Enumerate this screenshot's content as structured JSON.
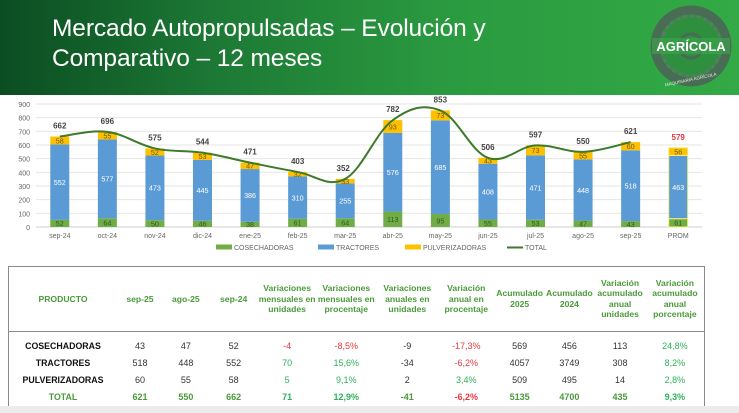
{
  "header": {
    "title_line1": "Mercado Autopropulsadas – Evolución y",
    "title_line2": "Comparativo – 12 meses",
    "logo": {
      "icon": "tire-gear-logo-icon",
      "brand": "AGRÍCOLA",
      "subtitle": "MAQUINARIA AGRÍCOLA"
    },
    "colors": {
      "banner_dark": "#0b4d22",
      "banner_light": "#33aa45"
    }
  },
  "chart_data": {
    "type": "bar",
    "stacked": true,
    "title": "",
    "xlabel": "",
    "ylabel": "",
    "ylim": [
      0,
      900
    ],
    "yticks": [
      "0",
      "100",
      "200",
      "300",
      "400",
      "500",
      "600",
      "700",
      "800",
      "900"
    ],
    "grid": true,
    "legend_position": "bottom",
    "categories": [
      "sep-24",
      "oct-24",
      "nov-24",
      "dic-24",
      "ene-25",
      "feb-25",
      "mar-25",
      "abr-25",
      "may-25",
      "jun-25",
      "jul-25",
      "ago-25",
      "sep-25",
      "PROM"
    ],
    "series": [
      {
        "name": "COSECHADORAS",
        "color": "#70ad47",
        "values": [
          52,
          64,
          50,
          46,
          38,
          61,
          64,
          113,
          95,
          55,
          53,
          47,
          43,
          61
        ]
      },
      {
        "name": "TRACTORES",
        "color": "#5b9bd5",
        "values": [
          552,
          577,
          473,
          445,
          386,
          310,
          255,
          576,
          685,
          408,
          471,
          448,
          518,
          463
        ]
      },
      {
        "name": "PULVERIZADORAS",
        "color": "#ffc000",
        "values": [
          58,
          55,
          52,
          53,
          47,
          32,
          33,
          93,
          73,
          43,
          73,
          55,
          60,
          56
        ]
      }
    ],
    "total": {
      "name": "TOTAL",
      "type": "line",
      "color": "#3d7a2a",
      "values": [
        662,
        696,
        575,
        544,
        471,
        403,
        352,
        782,
        853,
        506,
        597,
        550,
        621,
        579
      ],
      "line_covers": 13,
      "highlight_index": 13,
      "highlight_color": "#e8383d"
    }
  },
  "table": {
    "headers": [
      "PRODUCTO",
      "sep-25",
      "ago-25",
      "sep-24",
      "Variaciones mensuales en unidades",
      "Variaciones mensuales en procentaje",
      "Variaciones anuales en unidades",
      "Variación anual en procentaje",
      "Acumulado 2025",
      "Acumulado 2024",
      "Variación acumulado anual unidades",
      "Variación acumulado anual porcentaje"
    ],
    "rows": [
      {
        "product": "COSECHADORAS",
        "cells": [
          "43",
          "47",
          "52",
          "-4",
          "-8,5%",
          "-9",
          "-17,3%",
          "569",
          "456",
          "113",
          "24,8%"
        ]
      },
      {
        "product": "TRACTORES",
        "cells": [
          "518",
          "448",
          "552",
          "70",
          "15,6%",
          "-34",
          "-6,2%",
          "4057",
          "3749",
          "308",
          "8,2%"
        ]
      },
      {
        "product": "PULVERIZADORAS",
        "cells": [
          "60",
          "55",
          "58",
          "5",
          "9,1%",
          "2",
          "3,4%",
          "509",
          "495",
          "14",
          "2,8%"
        ]
      },
      {
        "product": "TOTAL",
        "cells": [
          "621",
          "550",
          "662",
          "71",
          "12,9%",
          "-41",
          "-6,2%",
          "5135",
          "4700",
          "435",
          "9,3%"
        ]
      }
    ]
  }
}
